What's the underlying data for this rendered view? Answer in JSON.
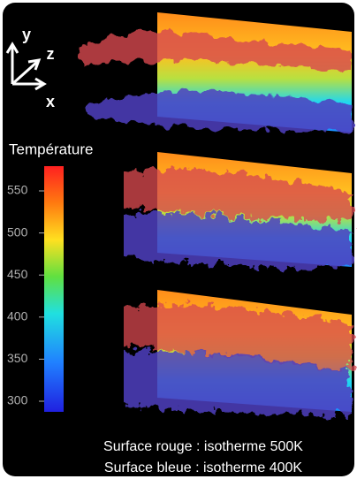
{
  "axes": {
    "y": "y",
    "z": "z",
    "x": "x"
  },
  "colorbar": {
    "title": "Température",
    "ticks": [
      550,
      500,
      450,
      400,
      350,
      300
    ]
  },
  "caption": [
    "Surface rouge : isotherme 500K",
    "Surface bleue : isotherme 400K"
  ]
}
